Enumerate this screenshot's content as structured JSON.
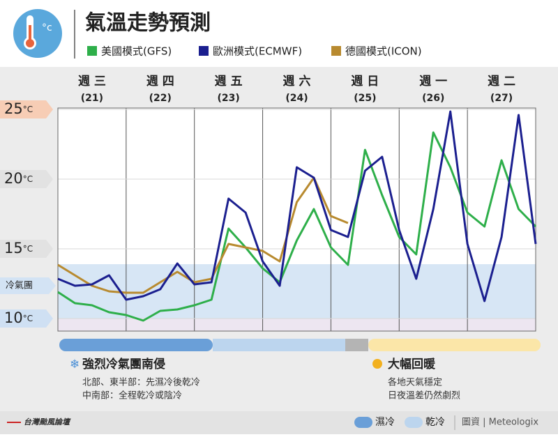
{
  "chart_data": {
    "type": "line",
    "title": "氣溫走勢預測",
    "y_unit": "°C",
    "days": [
      {
        "name": "週 三",
        "date": "(21)"
      },
      {
        "name": "週 四",
        "date": "(22)"
      },
      {
        "name": "週 五",
        "date": "(23)"
      },
      {
        "name": "週 六",
        "date": "(24)"
      },
      {
        "name": "週 日",
        "date": "(25)"
      },
      {
        "name": "週 一",
        "date": "(26)"
      },
      {
        "name": "週 二",
        "date": "(27)"
      }
    ],
    "x": [
      0,
      0.25,
      0.5,
      0.75,
      1,
      1.25,
      1.5,
      1.75,
      2,
      2.25,
      2.5,
      2.75,
      3,
      3.25,
      3.5,
      3.75,
      4,
      4.25,
      4.5,
      4.75,
      5,
      5.25,
      5.5,
      5.75,
      6,
      6.25,
      6.5,
      6.75,
      7
    ],
    "xlim": [
      0,
      7
    ],
    "xticks": [
      0,
      1,
      2,
      3,
      4,
      5,
      6,
      7
    ],
    "ylim": [
      9.1,
      25.1
    ],
    "yticks": [
      10,
      15,
      20,
      25
    ],
    "bands": [
      {
        "label": "冷氣團",
        "range": [
          10,
          13.9
        ],
        "color": "#d3e3f4"
      },
      {
        "range": [
          9.1,
          10
        ],
        "color": "#ebe3ef"
      }
    ],
    "series": [
      {
        "name": "美國模式(GFS)",
        "color": "#2eaf4a",
        "values": [
          11.9,
          11.1,
          10.95,
          10.45,
          10.25,
          9.85,
          10.55,
          10.65,
          10.95,
          11.35,
          16.45,
          15.1,
          13.6,
          12.6,
          15.6,
          17.85,
          15.1,
          13.85,
          22.1,
          18.85,
          15.85,
          14.6,
          23.35,
          20.85,
          17.6,
          16.6,
          21.35,
          17.85,
          16.6
        ]
      },
      {
        "name": "歐洲模式(ECMWF)",
        "color": "#1b1f8f",
        "values": [
          12.85,
          12.35,
          12.45,
          13.1,
          11.35,
          11.6,
          12.1,
          13.95,
          12.45,
          12.6,
          18.6,
          17.6,
          14.1,
          12.35,
          20.85,
          20.1,
          16.35,
          15.85,
          20.6,
          21.6,
          16.35,
          12.85,
          17.85,
          24.85,
          15.35,
          11.25,
          15.85,
          24.6,
          15.35
        ]
      },
      {
        "name": "德國模式(ICON)",
        "color": "#b88a2f",
        "values": [
          13.85,
          13.1,
          12.35,
          11.95,
          11.85,
          11.85,
          12.6,
          13.35,
          12.6,
          12.85,
          15.35,
          15.1,
          14.85,
          14.1,
          18.35,
          20.1,
          17.35,
          16.85,
          null,
          null,
          null,
          null,
          null,
          null,
          null,
          null,
          null,
          null,
          null
        ]
      }
    ],
    "notes": {
      "cold_title": "強烈冷氣團南侵",
      "cold_lines": [
        "北部、東半部：先濕冷後乾冷",
        "中南部：全程乾冷或陰冷"
      ],
      "warm_title": "大幅回暖",
      "warm_lines": [
        "各地天氣穩定",
        "日夜溫差仍然劇烈"
      ]
    },
    "phase_legend": [
      "濕冷",
      "乾冷"
    ],
    "source": "圖資 | Meteologix",
    "logo": "台灣颱風論壇"
  }
}
